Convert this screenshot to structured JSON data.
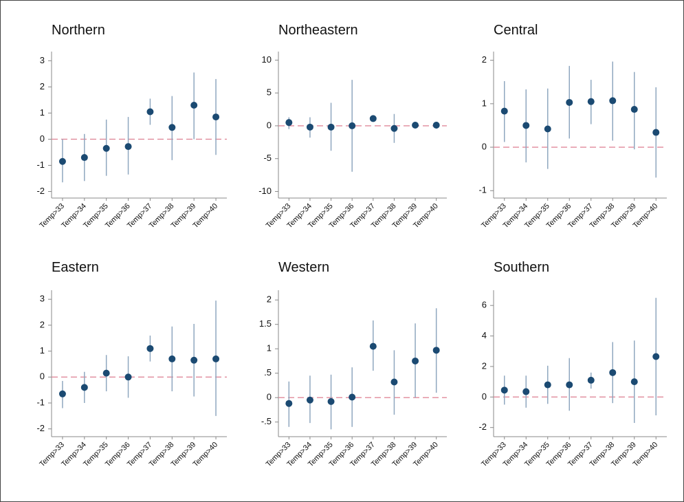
{
  "chart_data": [
    {
      "type": "errorbar",
      "title": "Northern",
      "categories": [
        "Temp>33",
        "Temp>34",
        "Temp>35",
        "Temp>36",
        "Temp>37",
        "Temp>38",
        "Temp>39",
        "Temp>40"
      ],
      "values": [
        -0.85,
        -0.7,
        -0.35,
        -0.28,
        1.05,
        0.45,
        1.3,
        0.85
      ],
      "lower": [
        -1.65,
        -1.6,
        -1.4,
        -1.35,
        0.55,
        -0.8,
        0.0,
        -0.6
      ],
      "upper": [
        0.0,
        0.2,
        0.75,
        0.85,
        1.55,
        1.65,
        2.55,
        2.3
      ],
      "ylim": [
        -2.25,
        3.35
      ],
      "yticks": [
        -2,
        -1,
        0,
        1,
        2,
        3
      ],
      "hline": 0,
      "color": "#1b4a72",
      "bar_color": "#8fa7bf",
      "hline_color": "#e0899a"
    },
    {
      "type": "errorbar",
      "title": "Northeastern",
      "categories": [
        "Temp>33",
        "Temp>34",
        "Temp>35",
        "Temp>36",
        "Temp>37",
        "Temp>38",
        "Temp>39",
        "Temp>40"
      ],
      "values": [
        0.5,
        -0.2,
        -0.2,
        0,
        1.1,
        -0.4,
        0.1,
        0.1
      ],
      "lower": [
        -0.5,
        -1.8,
        -3.8,
        -7,
        0.6,
        -2.6,
        -0.2,
        -0.2
      ],
      "upper": [
        1.3,
        1.3,
        3.5,
        7,
        1.6,
        1.8,
        0.4,
        0.4
      ],
      "ylim": [
        -11,
        11.3
      ],
      "yticks": [
        -10,
        -5,
        0,
        5,
        10
      ],
      "hline": 0,
      "color": "#1b4a72",
      "bar_color": "#8fa7bf",
      "hline_color": "#e0899a"
    },
    {
      "type": "errorbar",
      "title": "Central",
      "categories": [
        "Temp>33",
        "Temp>34",
        "Temp>35",
        "Temp>36",
        "Temp>37",
        "Temp>38",
        "Temp>39",
        "Temp>40"
      ],
      "values": [
        0.83,
        0.5,
        0.42,
        1.03,
        1.05,
        1.07,
        0.87,
        0.34
      ],
      "lower": [
        0.12,
        -0.35,
        -0.5,
        0.2,
        0.53,
        0.15,
        -0.05,
        -0.7
      ],
      "upper": [
        1.52,
        1.33,
        1.35,
        1.87,
        1.55,
        1.97,
        1.73,
        1.38
      ],
      "ylim": [
        -1.17,
        2.2
      ],
      "yticks": [
        -1,
        0,
        1,
        2
      ],
      "hline": 0,
      "color": "#1b4a72",
      "bar_color": "#8fa7bf",
      "hline_color": "#e0899a"
    },
    {
      "type": "errorbar",
      "title": "Eastern",
      "categories": [
        "Temp>33",
        "Temp>34",
        "Temp>35",
        "Temp>36",
        "Temp>37",
        "Temp>38",
        "Temp>39",
        "Temp>40"
      ],
      "values": [
        -0.65,
        -0.4,
        0.15,
        0,
        1.1,
        0.7,
        0.65,
        0.7
      ],
      "lower": [
        -1.2,
        -1.0,
        -0.55,
        -0.8,
        0.6,
        -0.55,
        -0.75,
        -1.5
      ],
      "upper": [
        -0.15,
        0.2,
        0.85,
        0.8,
        1.6,
        1.95,
        2.05,
        2.95
      ],
      "ylim": [
        -2.3,
        3.35
      ],
      "yticks": [
        -2,
        -1,
        0,
        1,
        2,
        3
      ],
      "hline": 0,
      "color": "#1b4a72",
      "bar_color": "#8fa7bf",
      "hline_color": "#e0899a"
    },
    {
      "type": "errorbar",
      "title": "Western",
      "categories": [
        "Temp>33",
        "Temp>34",
        "Temp>35",
        "Temp>36",
        "Temp>37",
        "Temp>38",
        "Temp>39",
        "Temp>40"
      ],
      "values": [
        -0.12,
        -0.05,
        -0.08,
        0.01,
        1.05,
        0.32,
        0.75,
        0.97
      ],
      "lower": [
        -0.6,
        -0.52,
        -0.65,
        -0.6,
        0.55,
        -0.35,
        0,
        0.1
      ],
      "upper": [
        0.33,
        0.45,
        0.47,
        0.62,
        1.58,
        0.97,
        1.52,
        1.83
      ],
      "ylim": [
        -0.8,
        2.2
      ],
      "yticks": [
        {
          "value": -0.5,
          "label": "-.5"
        },
        0,
        {
          "value": 0.5,
          "label": ".5"
        },
        1,
        1.5,
        2
      ],
      "hline": 0,
      "color": "#1b4a72",
      "bar_color": "#8fa7bf",
      "hline_color": "#e0899a"
    },
    {
      "type": "errorbar",
      "title": "Southern",
      "categories": [
        "Temp>33",
        "Temp>34",
        "Temp>35",
        "Temp>36",
        "Temp>37",
        "Temp>38",
        "Temp>39",
        "Temp>40"
      ],
      "values": [
        0.45,
        0.35,
        0.8,
        0.8,
        1.1,
        1.6,
        1.0,
        2.65
      ],
      "lower": [
        -0.5,
        -0.7,
        -0.45,
        -0.9,
        0.55,
        -0.4,
        -1.7,
        -1.2
      ],
      "upper": [
        1.4,
        1.4,
        2.05,
        2.55,
        1.6,
        3.6,
        3.7,
        6.5
      ],
      "ylim": [
        -2.6,
        7
      ],
      "yticks": [
        -2,
        0,
        2,
        4,
        6
      ],
      "hline": 0,
      "color": "#1b4a72",
      "bar_color": "#8fa7bf",
      "hline_color": "#e0899a"
    }
  ]
}
